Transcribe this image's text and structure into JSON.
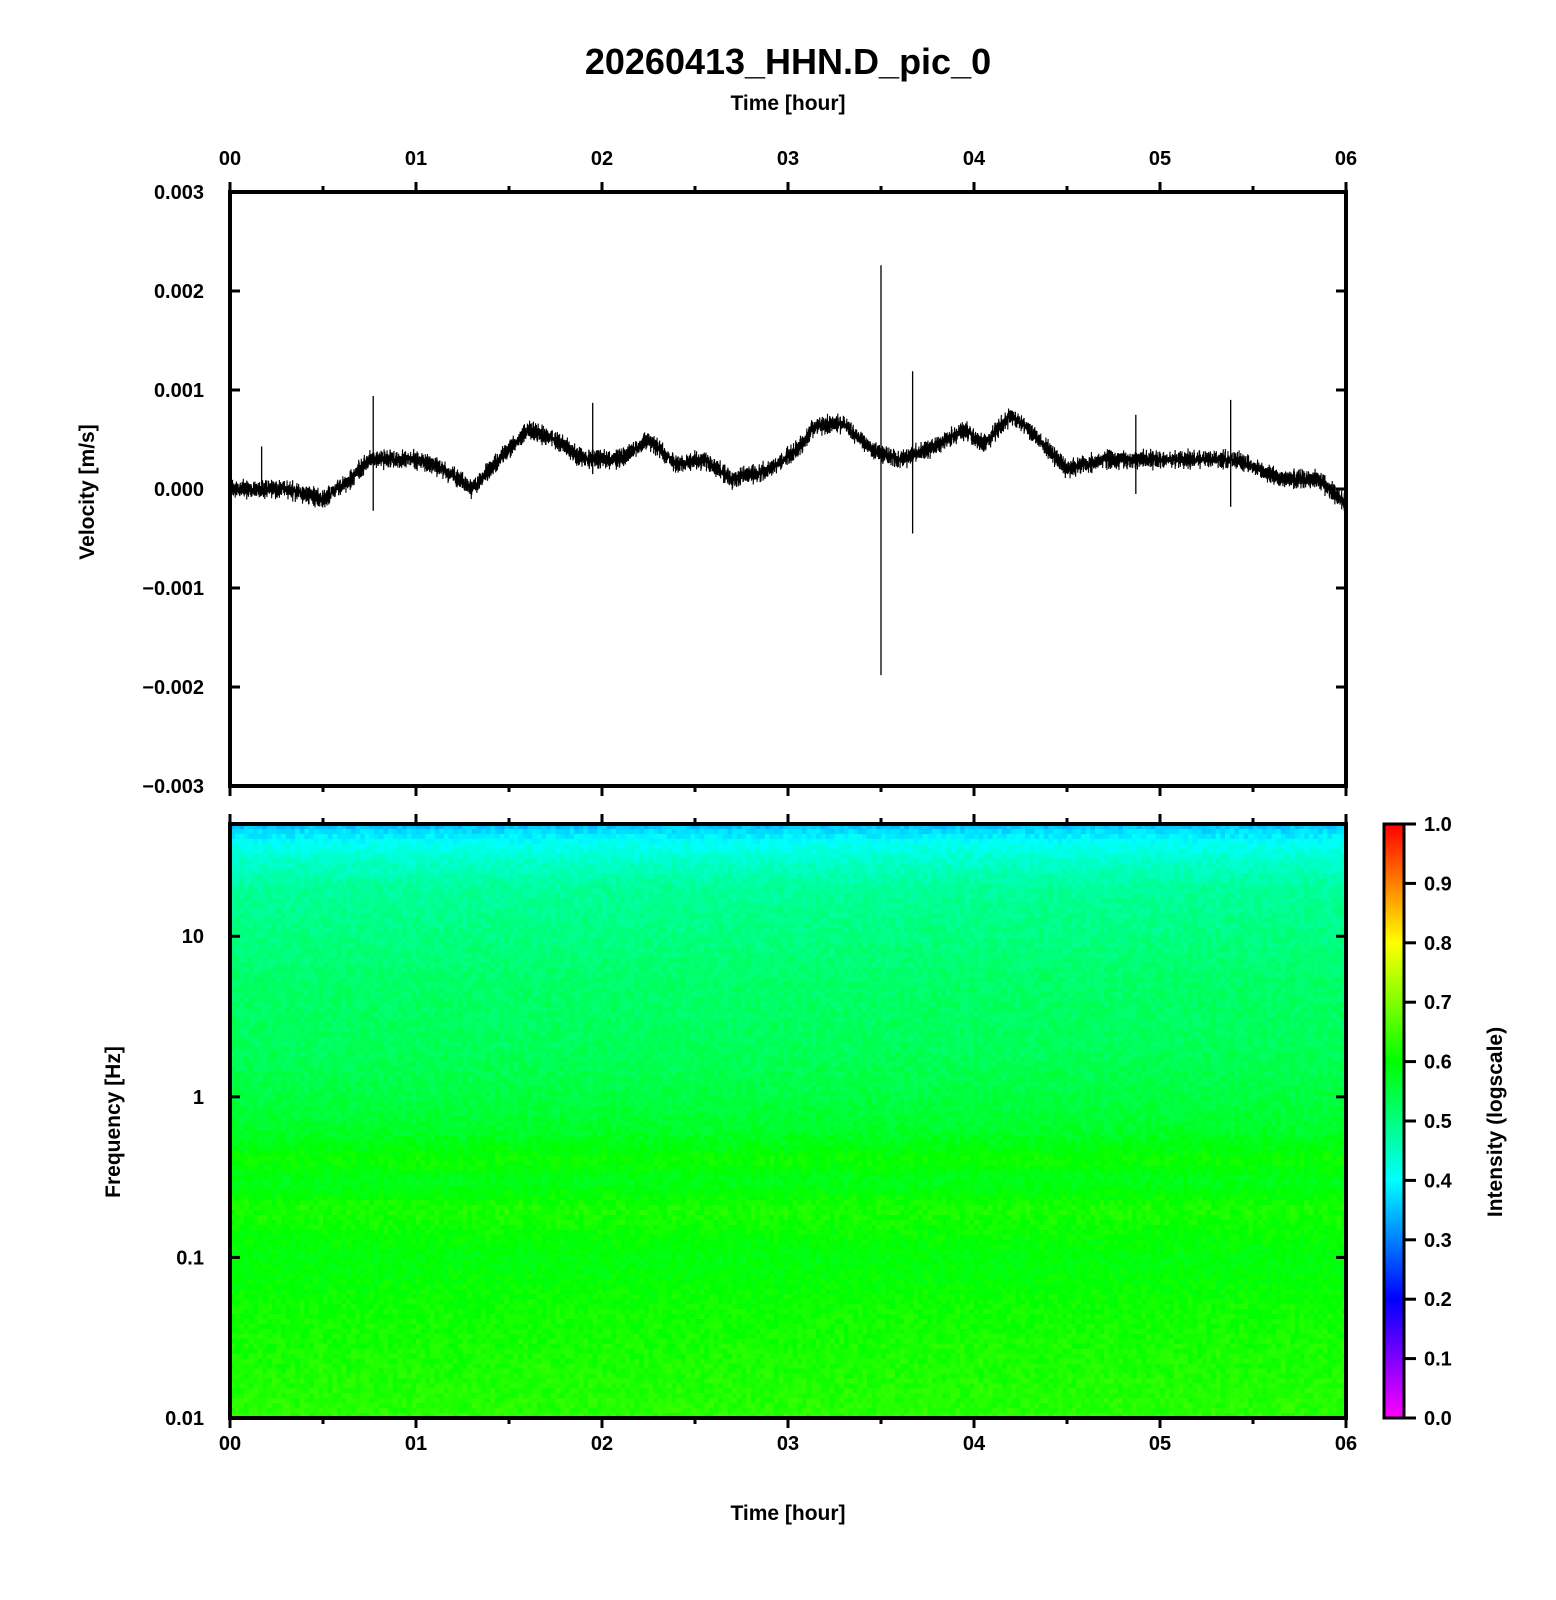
{
  "chart_data": [
    {
      "type": "line",
      "title": "20260413_HHN.D_pic_0",
      "xlabel": "Time [hour]",
      "ylabel": "Velocity [m/s]",
      "x_ticks": [
        "00",
        "01",
        "02",
        "03",
        "04",
        "05",
        "06"
      ],
      "y_ticks": [
        "0.003",
        "0.002",
        "0.001",
        "0.000",
        "−0.001",
        "−0.002",
        "−0.003"
      ],
      "xlim": [
        0,
        6
      ],
      "ylim": [
        -0.003,
        0.003
      ],
      "trace_color": "#000000",
      "baseline": {
        "x": [
          0.0,
          0.3,
          0.5,
          0.65,
          0.75,
          1.0,
          1.15,
          1.3,
          1.45,
          1.6,
          1.75,
          1.9,
          2.1,
          2.25,
          2.4,
          2.55,
          2.7,
          2.9,
          3.05,
          3.15,
          3.3,
          3.45,
          3.6,
          3.75,
          3.95,
          4.05,
          4.2,
          4.35,
          4.5,
          4.7,
          5.0,
          5.4,
          5.65,
          5.85,
          6.0
        ],
        "y": [
          0.0,
          0.0,
          -0.0001,
          0.0001,
          0.0003,
          0.0003,
          0.0002,
          0.0,
          0.0003,
          0.0006,
          0.0005,
          0.0003,
          0.0003,
          0.0005,
          0.00025,
          0.0003,
          0.0001,
          0.0002,
          0.0004,
          0.00065,
          0.00065,
          0.0004,
          0.0003,
          0.0004,
          0.0006,
          0.00045,
          0.00075,
          0.0005,
          0.0002,
          0.0003,
          0.0003,
          0.0003,
          0.0001,
          0.0001,
          -0.00015
        ]
      },
      "noise_amplitude": 9e-05,
      "spikes": [
        {
          "x": 0.17,
          "top": 0.00043,
          "bottom": 5e-05
        },
        {
          "x": 0.77,
          "top": 0.00094,
          "bottom": -0.00022
        },
        {
          "x": 1.95,
          "top": 0.00087,
          "bottom": 0.00015
        },
        {
          "x": 3.5,
          "top": 0.00226,
          "bottom": -0.00188
        },
        {
          "x": 3.67,
          "top": 0.00119,
          "bottom": -0.00045
        },
        {
          "x": 4.87,
          "top": 0.00075,
          "bottom": -5e-05
        },
        {
          "x": 5.38,
          "top": 0.0009,
          "bottom": -0.00018
        }
      ]
    },
    {
      "type": "heatmap",
      "xlabel": "Time [hour]",
      "ylabel": "Frequency [Hz]",
      "x_ticks": [
        "00",
        "01",
        "02",
        "03",
        "04",
        "05",
        "06"
      ],
      "y_ticks": [
        "10",
        "1",
        "0.1",
        "0.01"
      ],
      "xlim": [
        0,
        6
      ],
      "ylim": [
        0.01,
        50
      ],
      "y_scale": "log",
      "colorbar": {
        "label": "Intensity (logscale)",
        "ticks": [
          "1.0",
          "0.9",
          "0.8",
          "0.7",
          "0.6",
          "0.5",
          "0.4",
          "0.3",
          "0.2",
          "0.1",
          "0.0"
        ],
        "range": [
          0,
          1
        ],
        "colors": [
          "#ff00ff",
          "#0000ff",
          "#00ffff",
          "#00ff00",
          "#ffff00",
          "#ff0000"
        ]
      },
      "intensity_profile": {
        "freq": [
          50,
          40,
          30,
          20,
          10,
          5,
          2,
          1,
          0.6,
          0.4,
          0.3,
          0.2,
          0.1,
          0.05,
          0.01
        ],
        "intensity": [
          0.35,
          0.4,
          0.44,
          0.48,
          0.5,
          0.52,
          0.53,
          0.55,
          0.57,
          0.61,
          0.58,
          0.62,
          0.59,
          0.61,
          0.63
        ]
      }
    }
  ]
}
